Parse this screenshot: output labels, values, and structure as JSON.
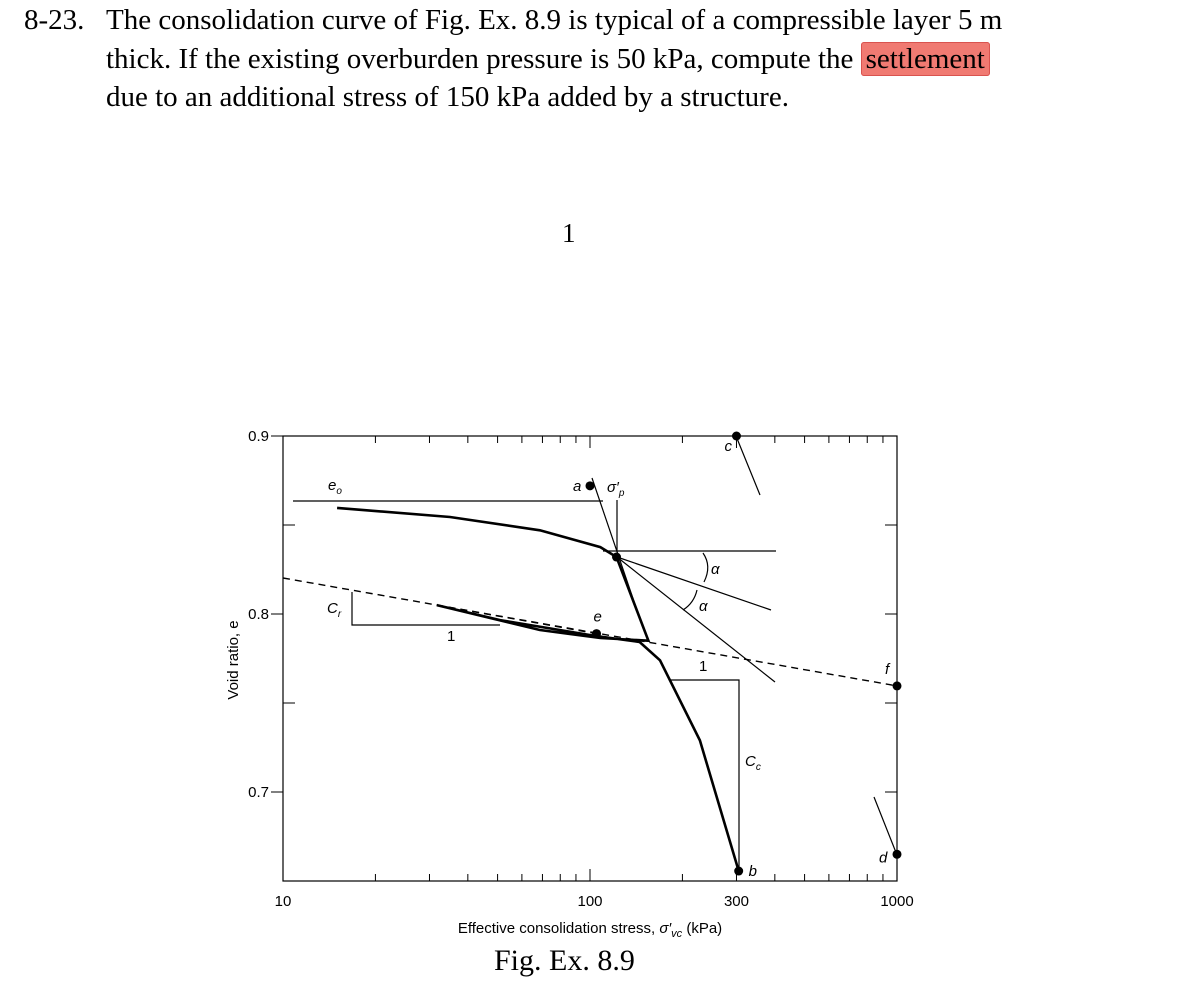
{
  "problem": {
    "number": "8-23.",
    "lines": [
      "The consolidation curve of Fig. Ex. 8.9 is typical of a compressible layer 5 m",
      "thick. If the existing overburden pressure is 50 kPa, compute the",
      "due to an additional stress of 150 kPa added by a structure."
    ],
    "highlight": "settlement"
  },
  "page_number": "1",
  "figure_caption": "Fig. Ex. 8.9",
  "chart_data": {
    "type": "line",
    "x_label": [
      "Effective consolidation stress, ",
      "σ′",
      "vc",
      " (kPa)"
    ],
    "y_label": "Void ratio, e",
    "log_x": true,
    "xlim": [
      10,
      1000
    ],
    "xticks": [
      10,
      100,
      300,
      1000
    ],
    "xminor": [
      20,
      30,
      40,
      50,
      60,
      70,
      80,
      90,
      200,
      400,
      500,
      600,
      700,
      800,
      900
    ],
    "ylim": [
      0.65,
      0.9
    ],
    "yticks": [
      0.7,
      0.8,
      0.9
    ],
    "yminor": [
      0.75,
      0.85
    ],
    "series": [
      {
        "color": "#000000",
        "style": "solid",
        "x": [
          15,
          35,
          68.7,
          108,
          122,
          155,
          108,
          68.7,
          31.7,
          51,
          105,
          145,
          169,
          228,
          305
        ],
        "values": [
          0.8596,
          0.8545,
          0.847,
          0.8376,
          0.832,
          0.785,
          0.7865,
          0.791,
          0.805,
          0.7966,
          0.7876,
          0.7843,
          0.774,
          0.729,
          0.6556
        ]
      },
      {
        "color": "#000000",
        "style": "dashed",
        "x": [
          10,
          1000
        ],
        "values": [
          0.8202,
          0.7596
        ]
      },
      {
        "color": "#000000",
        "style": "dashed",
        "x": [
          31.7,
          105
        ],
        "values": [
          0.805,
          0.789
        ]
      }
    ],
    "points": [
      {
        "label": "a",
        "x": 100,
        "y": 0.872
      },
      {
        "label": "b",
        "x": 305,
        "y": 0.6556
      },
      {
        "label": "c",
        "x": 300,
        "y": 0.9
      },
      {
        "label": "d",
        "x": 1000,
        "y": 0.665
      },
      {
        "label": "e",
        "x": 105,
        "y": 0.789
      },
      {
        "label": "f",
        "x": 1000,
        "y": 0.7596
      },
      {
        "label": "",
        "x": 122,
        "y": 0.832
      }
    ],
    "annotations": [
      {
        "text": "e",
        "sub": "o"
      },
      {
        "text": "σ′",
        "sub": "p"
      },
      {
        "text": "α"
      },
      {
        "text": "α"
      },
      {
        "text": "C",
        "sub": "r"
      },
      {
        "text": "1"
      },
      {
        "text": "1"
      },
      {
        "text": "C",
        "sub": "c"
      }
    ]
  }
}
